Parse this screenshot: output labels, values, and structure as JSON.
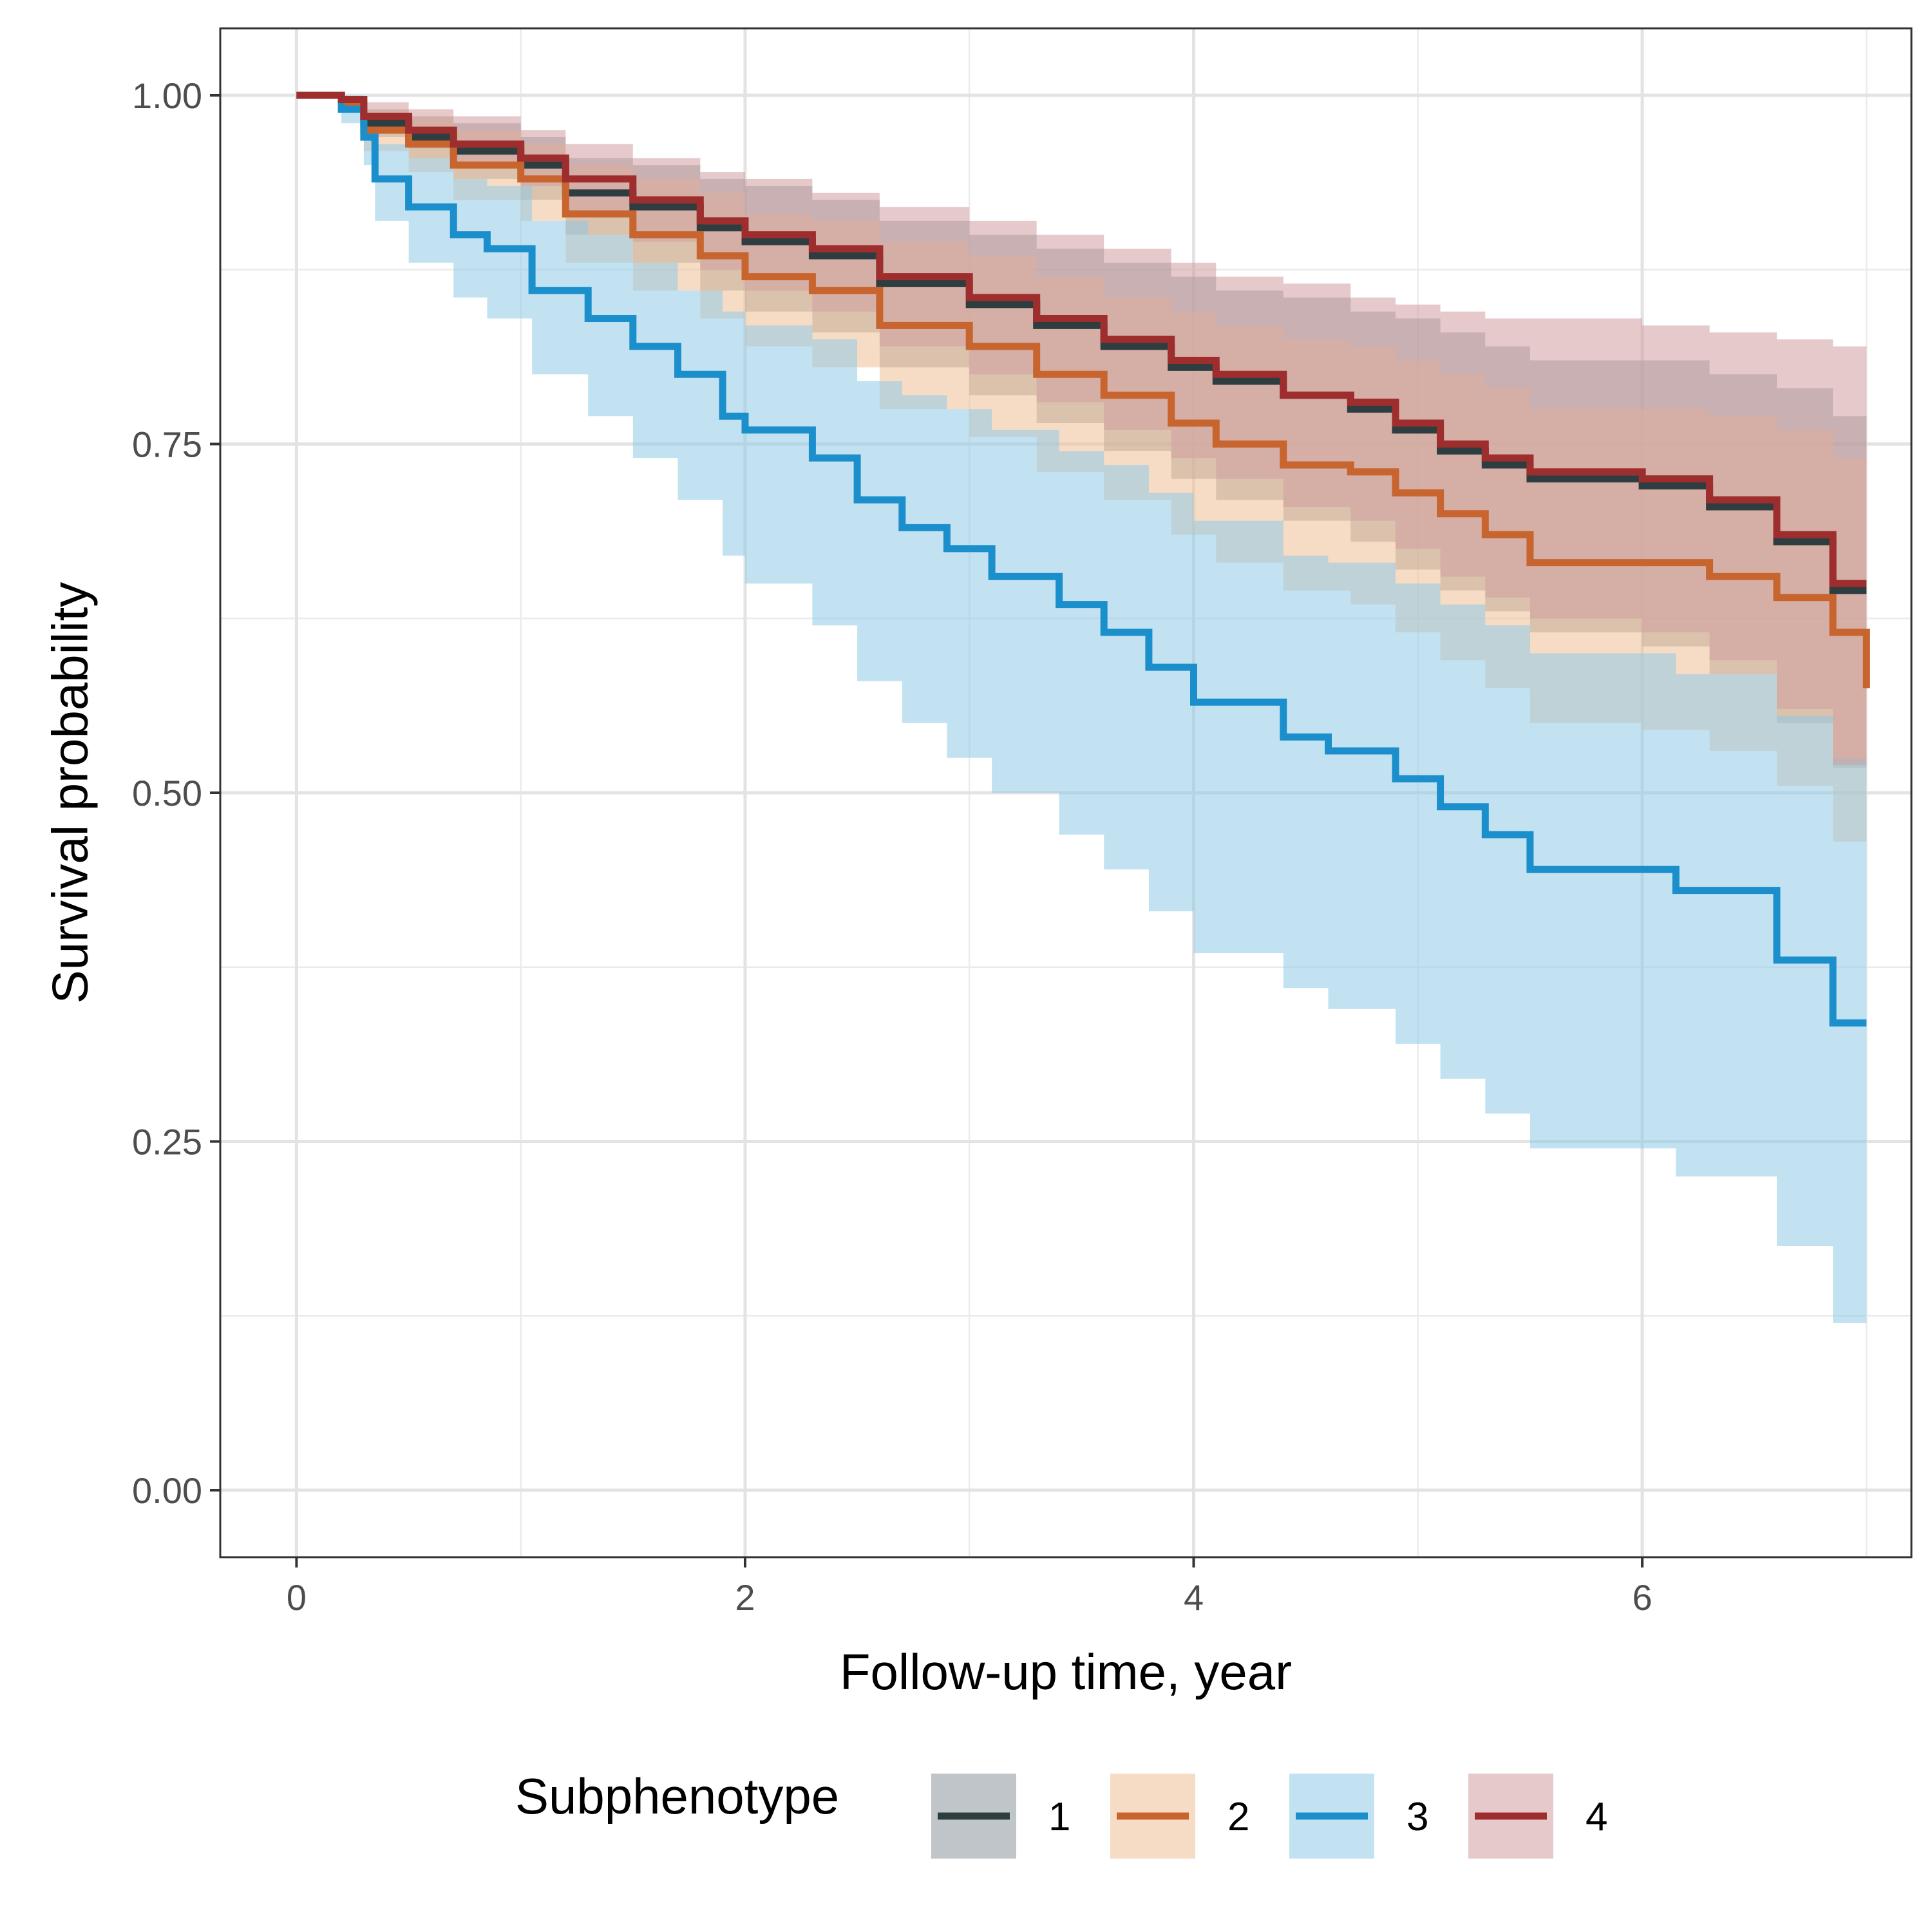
{
  "chart_data": {
    "type": "line",
    "subtype": "kaplan-meier step curves with confidence bands",
    "xlabel": "Follow-up time, year",
    "ylabel": "Survival probability",
    "xlim": [
      -0.34,
      7.2
    ],
    "ylim": [
      -0.048,
      1.048
    ],
    "x_ticks": [
      0,
      2,
      4,
      6
    ],
    "x_tick_labels": [
      "0",
      "2",
      "4",
      "6"
    ],
    "y_ticks": [
      0.0,
      0.25,
      0.5,
      0.75,
      1.0
    ],
    "y_tick_labels": [
      "0.00",
      "0.25",
      "0.50",
      "0.75",
      "1.00"
    ],
    "grid": true,
    "legend": {
      "title": "Subphenotype",
      "position": "bottom"
    },
    "series": [
      {
        "name": "1",
        "color": "#2e3d40",
        "fill": "#8a969a",
        "x": [
          0,
          0.2,
          0.3,
          0.5,
          0.7,
          1.0,
          1.2,
          1.5,
          1.8,
          2.0,
          2.3,
          2.6,
          3.0,
          3.3,
          3.6,
          3.9,
          4.1,
          4.4,
          4.7,
          4.9,
          5.1,
          5.3,
          5.5,
          6.0,
          6.3,
          6.6,
          6.85,
          7.0
        ],
        "y": [
          1.0,
          0.995,
          0.98,
          0.97,
          0.96,
          0.95,
          0.93,
          0.92,
          0.905,
          0.895,
          0.885,
          0.865,
          0.85,
          0.835,
          0.82,
          0.805,
          0.795,
          0.785,
          0.775,
          0.76,
          0.745,
          0.735,
          0.725,
          0.72,
          0.705,
          0.68,
          0.645,
          0.645
        ],
        "lower": [
          1.0,
          0.993,
          0.97,
          0.955,
          0.94,
          0.925,
          0.9,
          0.88,
          0.86,
          0.845,
          0.83,
          0.805,
          0.785,
          0.765,
          0.745,
          0.725,
          0.71,
          0.695,
          0.68,
          0.66,
          0.645,
          0.63,
          0.615,
          0.605,
          0.585,
          0.55,
          0.518,
          0.518
        ],
        "upper": [
          1.0,
          0.998,
          0.99,
          0.985,
          0.98,
          0.97,
          0.955,
          0.95,
          0.94,
          0.935,
          0.925,
          0.91,
          0.9,
          0.89,
          0.88,
          0.87,
          0.86,
          0.855,
          0.845,
          0.84,
          0.83,
          0.82,
          0.81,
          0.81,
          0.8,
          0.79,
          0.77,
          0.77
        ]
      },
      {
        "name": "2",
        "color": "#c8642e",
        "fill": "#f0bf96",
        "x": [
          0,
          0.2,
          0.3,
          0.5,
          0.7,
          1.0,
          1.2,
          1.5,
          1.8,
          2.0,
          2.3,
          2.6,
          3.0,
          3.3,
          3.6,
          3.9,
          4.1,
          4.4,
          4.7,
          4.9,
          5.1,
          5.3,
          5.5,
          6.0,
          6.3,
          6.6,
          6.85,
          7.0
        ],
        "y": [
          1.0,
          0.995,
          0.975,
          0.965,
          0.95,
          0.94,
          0.915,
          0.9,
          0.885,
          0.87,
          0.86,
          0.835,
          0.82,
          0.8,
          0.785,
          0.765,
          0.75,
          0.735,
          0.73,
          0.715,
          0.7,
          0.685,
          0.665,
          0.665,
          0.655,
          0.64,
          0.615,
          0.575
        ],
        "lower": [
          1.0,
          0.99,
          0.96,
          0.945,
          0.925,
          0.91,
          0.88,
          0.86,
          0.84,
          0.82,
          0.805,
          0.775,
          0.755,
          0.73,
          0.71,
          0.685,
          0.665,
          0.645,
          0.635,
          0.615,
          0.595,
          0.575,
          0.55,
          0.545,
          0.53,
          0.505,
          0.465,
          0.445
        ],
        "upper": [
          1.0,
          0.999,
          0.99,
          0.985,
          0.975,
          0.965,
          0.95,
          0.94,
          0.93,
          0.915,
          0.91,
          0.895,
          0.885,
          0.87,
          0.855,
          0.845,
          0.835,
          0.825,
          0.82,
          0.81,
          0.8,
          0.79,
          0.775,
          0.775,
          0.77,
          0.76,
          0.74,
          0.735
        ]
      },
      {
        "name": "3",
        "color": "#1b8fcb",
        "fill": "#8fcbe8",
        "x": [
          0,
          0.2,
          0.3,
          0.35,
          0.5,
          0.7,
          0.85,
          1.05,
          1.3,
          1.5,
          1.7,
          1.9,
          2.0,
          2.3,
          2.5,
          2.7,
          2.9,
          3.1,
          3.4,
          3.6,
          3.8,
          4.0,
          4.4,
          4.6,
          4.9,
          5.1,
          5.3,
          5.5,
          6.0,
          6.15,
          6.6,
          6.85,
          7.0
        ],
        "y": [
          1.0,
          0.99,
          0.97,
          0.94,
          0.92,
          0.9,
          0.89,
          0.86,
          0.84,
          0.82,
          0.8,
          0.77,
          0.76,
          0.74,
          0.71,
          0.69,
          0.675,
          0.655,
          0.635,
          0.615,
          0.59,
          0.565,
          0.54,
          0.53,
          0.51,
          0.49,
          0.47,
          0.445,
          0.445,
          0.43,
          0.38,
          0.335,
          0.335
        ],
        "lower": [
          1.0,
          0.98,
          0.95,
          0.91,
          0.88,
          0.855,
          0.84,
          0.8,
          0.77,
          0.74,
          0.71,
          0.67,
          0.65,
          0.62,
          0.58,
          0.55,
          0.525,
          0.5,
          0.47,
          0.445,
          0.415,
          0.385,
          0.36,
          0.345,
          0.32,
          0.295,
          0.27,
          0.245,
          0.245,
          0.225,
          0.175,
          0.12,
          0.12
        ],
        "upper": [
          1.0,
          1.0,
          0.985,
          0.965,
          0.955,
          0.94,
          0.935,
          0.91,
          0.9,
          0.88,
          0.86,
          0.845,
          0.835,
          0.825,
          0.795,
          0.785,
          0.775,
          0.76,
          0.745,
          0.735,
          0.715,
          0.695,
          0.67,
          0.665,
          0.65,
          0.635,
          0.62,
          0.6,
          0.6,
          0.585,
          0.555,
          0.525,
          0.525
        ]
      },
      {
        "name": "4",
        "color": "#9e2d2e",
        "fill": "#d19ea1",
        "x": [
          0,
          0.2,
          0.3,
          0.5,
          0.7,
          1.0,
          1.2,
          1.5,
          1.8,
          2.0,
          2.3,
          2.6,
          3.0,
          3.3,
          3.6,
          3.9,
          4.1,
          4.4,
          4.7,
          4.9,
          5.1,
          5.3,
          5.5,
          6.0,
          6.3,
          6.6,
          6.85,
          7.0
        ],
        "y": [
          1.0,
          0.997,
          0.985,
          0.975,
          0.965,
          0.955,
          0.94,
          0.925,
          0.91,
          0.9,
          0.89,
          0.87,
          0.855,
          0.84,
          0.825,
          0.81,
          0.8,
          0.785,
          0.78,
          0.765,
          0.75,
          0.74,
          0.73,
          0.725,
          0.71,
          0.685,
          0.65,
          0.65
        ],
        "lower": [
          1.0,
          0.995,
          0.975,
          0.962,
          0.95,
          0.935,
          0.915,
          0.895,
          0.875,
          0.86,
          0.845,
          0.82,
          0.8,
          0.78,
          0.76,
          0.74,
          0.725,
          0.705,
          0.695,
          0.675,
          0.655,
          0.64,
          0.625,
          0.615,
          0.595,
          0.56,
          0.52,
          0.52
        ],
        "upper": [
          1.0,
          0.999,
          0.995,
          0.99,
          0.985,
          0.975,
          0.965,
          0.955,
          0.945,
          0.94,
          0.93,
          0.92,
          0.91,
          0.9,
          0.89,
          0.88,
          0.87,
          0.865,
          0.855,
          0.85,
          0.845,
          0.84,
          0.84,
          0.835,
          0.83,
          0.825,
          0.82,
          0.82
        ]
      }
    ]
  }
}
